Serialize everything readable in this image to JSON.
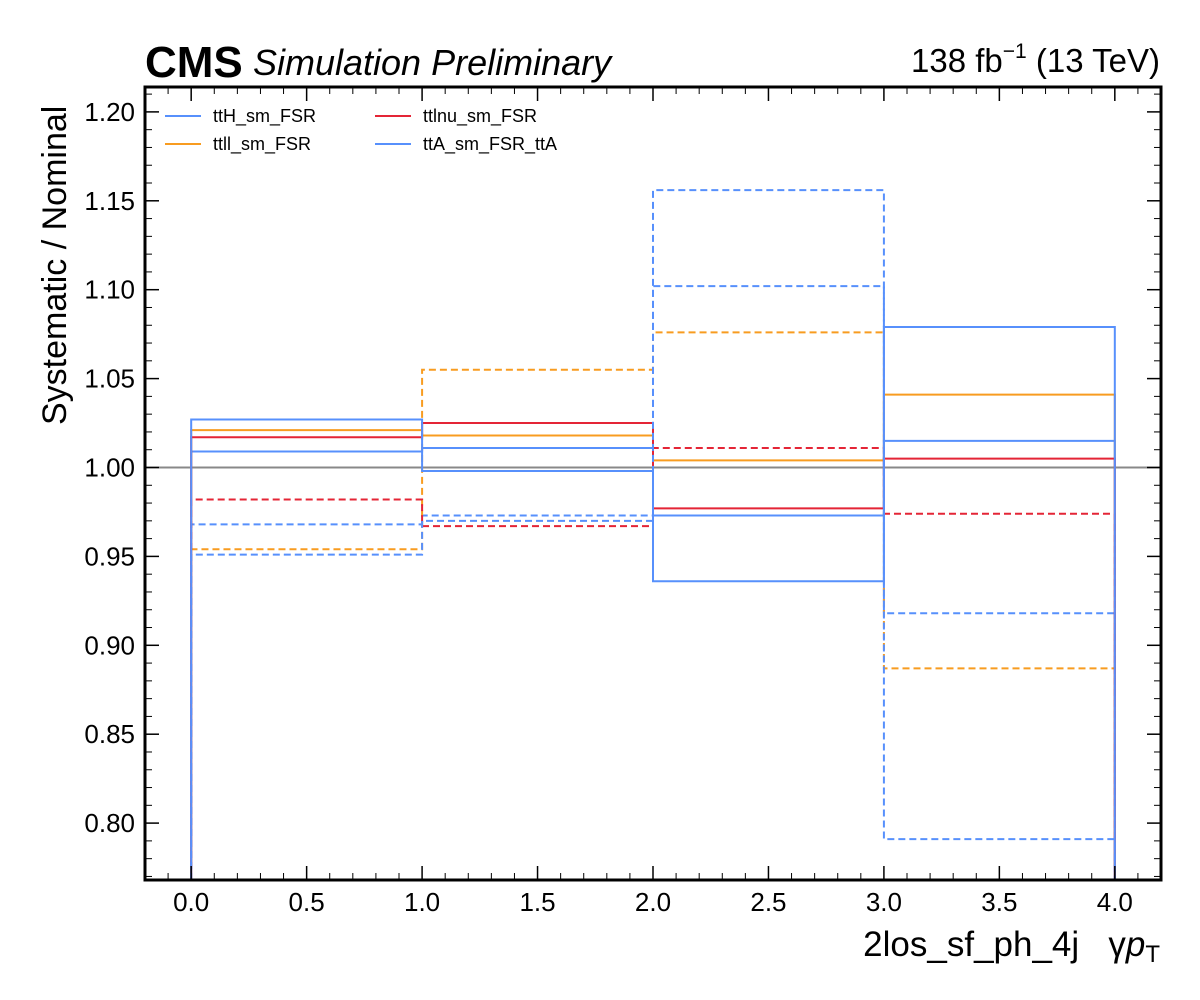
{
  "header": {
    "experiment": "CMS",
    "status": "Simulation Preliminary",
    "lumi_value": "138 fb",
    "lumi_exp": "−1",
    "energy": " (13 TeV)"
  },
  "chart_data": {
    "type": "line",
    "title": "",
    "xlabel_main": "2los_sf_ph_4j",
    "xlabel_var": "γ",
    "xlabel_p": "p",
    "xlabel_sub": "T",
    "ylabel": "Systematic / Nominal",
    "xlim": [
      -0.2,
      4.2
    ],
    "ylim": [
      0.768,
      1.214
    ],
    "x_ticks": [
      0.0,
      0.5,
      1.0,
      1.5,
      2.0,
      2.5,
      3.0,
      3.5,
      4.0
    ],
    "x_tick_labels": [
      "0.0",
      "0.5",
      "1.0",
      "1.5",
      "2.0",
      "2.5",
      "3.0",
      "3.5",
      "4.0"
    ],
    "y_ticks": [
      0.8,
      0.85,
      0.9,
      0.95,
      1.0,
      1.05,
      1.1,
      1.15,
      1.2
    ],
    "y_tick_labels": [
      "0.80",
      "0.85",
      "0.90",
      "0.95",
      "1.00",
      "1.05",
      "1.10",
      "1.15",
      "1.20"
    ],
    "reference_line": 1.0,
    "bin_edges": [
      0,
      1,
      2,
      3,
      4
    ],
    "grid": false,
    "legend_position": "top-left",
    "series": [
      {
        "name": "ttH_sm_FSR",
        "color": "#5790fc",
        "up": [
          1.009,
          1.011,
          0.973,
          1.015
        ],
        "down": [
          0.968,
          0.973,
          1.102,
          0.918
        ]
      },
      {
        "name": "ttll_sm_FSR",
        "color": "#f89c20",
        "up": [
          1.021,
          1.018,
          1.004,
          1.041
        ],
        "down": [
          0.954,
          1.055,
          1.076,
          0.887
        ]
      },
      {
        "name": "ttlnu_sm_FSR",
        "color": "#e42536",
        "up": [
          1.017,
          1.025,
          0.977,
          1.005
        ],
        "down": [
          0.982,
          0.967,
          1.011,
          0.974
        ]
      },
      {
        "name": "ttA_sm_FSR_ttA",
        "color": "#5790fc",
        "up": [
          1.027,
          0.998,
          0.936,
          1.079
        ],
        "down": [
          0.951,
          0.97,
          1.156,
          0.791
        ]
      }
    ]
  }
}
